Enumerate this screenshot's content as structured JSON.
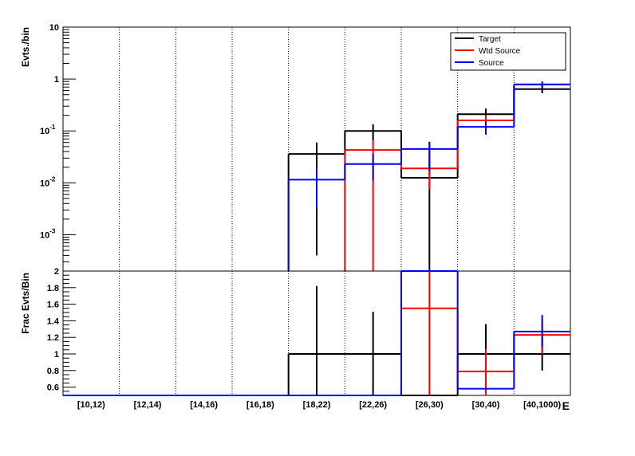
{
  "chart_data": [
    {
      "type": "histogram",
      "scale": "log",
      "ylabel": "Evts./bin",
      "ylim": [
        0.0002,
        10
      ],
      "yticks": [
        {
          "value": 10,
          "label": "10",
          "sup": ""
        },
        {
          "value": 1,
          "label": "1",
          "sup": ""
        },
        {
          "value": 0.1,
          "label": "10",
          "sup": "-1"
        },
        {
          "value": 0.01,
          "label": "10",
          "sup": "-2"
        },
        {
          "value": 0.001,
          "label": "10",
          "sup": "-3"
        }
      ],
      "categories": [
        "[10,12)",
        "[12,14)",
        "[14,16)",
        "[16,18)",
        "[18,22)",
        "[22,26)",
        "[26,30)",
        "[30,40)",
        "[40,1000)"
      ],
      "legend": {
        "placement": "top-right",
        "entries": [
          "Target",
          "Wtd Source",
          "Source"
        ]
      },
      "series": [
        {
          "name": "Target",
          "color": "#000000",
          "values": [
            null,
            null,
            null,
            null,
            0.036,
            0.1,
            0.0125,
            0.21,
            0.64
          ],
          "err_low": [
            null,
            null,
            null,
            null,
            0.0004,
            0.066,
            0.0002,
            0.15,
            0.53
          ],
          "err_high": [
            null,
            null,
            null,
            null,
            0.06,
            0.135,
            0.062,
            0.27,
            0.76
          ]
        },
        {
          "name": "Wtd Source",
          "color": "#ff0000",
          "values": [
            null,
            null,
            null,
            null,
            null,
            0.043,
            0.019,
            0.16,
            0.79
          ],
          "err_low": [
            null,
            null,
            null,
            null,
            null,
            0.0002,
            0.0075,
            0.11,
            0.71
          ],
          "err_high": [
            null,
            null,
            null,
            null,
            null,
            0.066,
            0.031,
            0.2,
            0.86
          ]
        },
        {
          "name": "Source",
          "color": "#0000ff",
          "values": [
            null,
            null,
            null,
            null,
            0.0115,
            0.023,
            0.045,
            0.12,
            0.78
          ],
          "err_low": [
            null,
            null,
            null,
            null,
            0.0033,
            0.011,
            0.017,
            0.085,
            0.69
          ],
          "err_high": [
            null,
            null,
            null,
            null,
            0.019,
            0.036,
            0.06,
            0.155,
            0.9
          ]
        }
      ]
    },
    {
      "type": "histogram",
      "ylabel": "Frac Evts/Bin",
      "xlabel": "E",
      "ylim": [
        0.5,
        2.0
      ],
      "yticks": [
        0.6,
        0.8,
        1,
        1.2,
        1.4,
        1.6,
        1.8,
        2
      ],
      "categories": [
        "[10,12)",
        "[12,14)",
        "[14,16)",
        "[16,18)",
        "[18,22)",
        "[22,26)",
        "[26,30)",
        "[30,40)",
        "[40,1000)"
      ],
      "series": [
        {
          "name": "Target",
          "color": "#000000",
          "values": [
            0.5,
            0.5,
            0.5,
            0.5,
            1.0,
            1.0,
            0.5,
            1.0,
            1.0
          ],
          "err_low": [
            null,
            null,
            null,
            null,
            0.5,
            0.5,
            null,
            0.5,
            0.8
          ],
          "err_high": [
            null,
            null,
            null,
            null,
            1.82,
            1.51,
            null,
            1.36,
            1.2
          ]
        },
        {
          "name": "Wtd Source",
          "color": "#ff0000",
          "values": [
            0.5,
            0.5,
            0.5,
            0.5,
            0.5,
            0.5,
            1.55,
            0.79,
            1.23
          ],
          "err_low": [
            null,
            null,
            null,
            null,
            null,
            null,
            0.5,
            0.5,
            1.0
          ],
          "err_high": [
            null,
            null,
            null,
            null,
            null,
            null,
            2.0,
            1.06,
            1.42
          ]
        },
        {
          "name": "Source",
          "color": "#0000ff",
          "values": [
            0.5,
            0.5,
            0.5,
            0.5,
            0.5,
            0.5,
            2.0,
            0.58,
            1.27
          ],
          "err_low": [
            null,
            null,
            null,
            null,
            null,
            null,
            null,
            null,
            1.08
          ],
          "err_high": [
            null,
            null,
            null,
            null,
            null,
            null,
            null,
            null,
            1.47
          ]
        }
      ]
    }
  ]
}
